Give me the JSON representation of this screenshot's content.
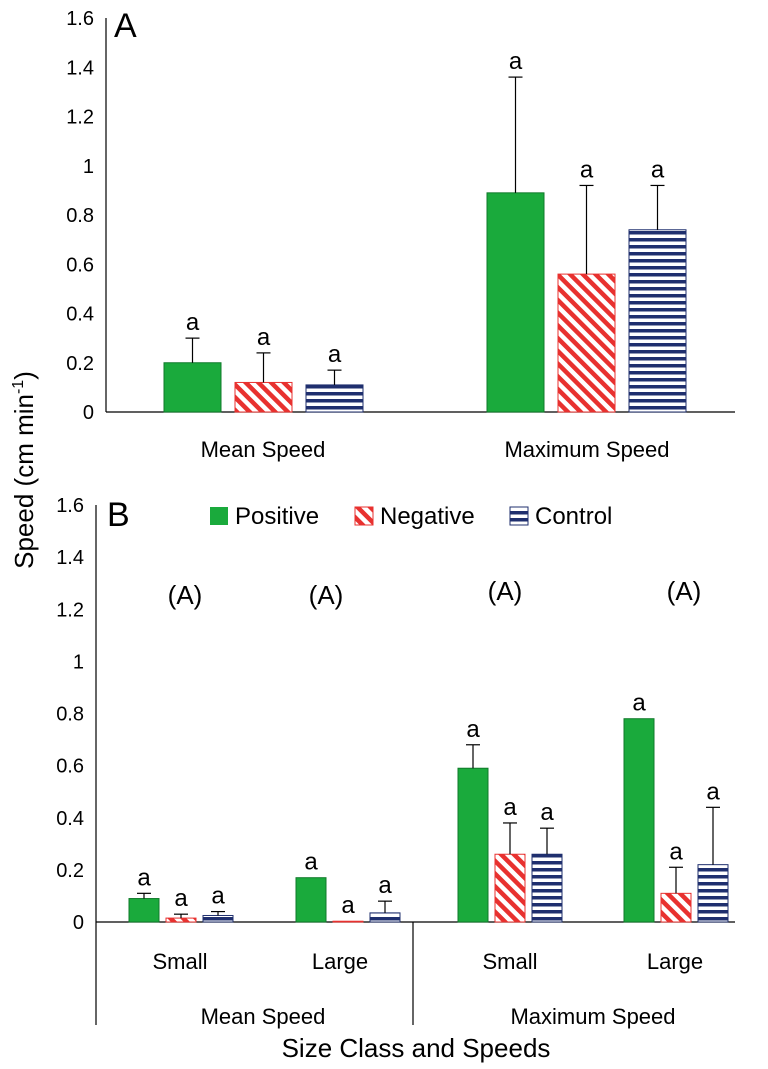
{
  "shared": {
    "ylabel": "Speed (cm min",
    "ylabel_sup": "-1",
    "ylabel_close": ")",
    "xlabel": "Size Class and Speeds",
    "yticks": [
      "0",
      "0.2",
      "0.4",
      "0.6",
      "0.8",
      "1",
      "1.2",
      "1.4",
      "1.6"
    ],
    "colors": {
      "Positive": "#1aaa3c",
      "Negative": "#e8312f",
      "Control": "#1f2f6e"
    },
    "patterns": {
      "Positive": "solid",
      "Negative": "diagonal-hatch",
      "Control": "horizontal-hatch"
    },
    "legend": [
      "Positive",
      "Negative",
      "Control"
    ],
    "legend_position": "top-center (panel B)"
  },
  "chart_data": [
    {
      "type": "bar",
      "panel_label": "A",
      "categories": [
        "Mean Speed",
        "Maximum Speed"
      ],
      "ylim": [
        0,
        1.6
      ],
      "series": [
        {
          "name": "Positive",
          "values": [
            0.2,
            0.89
          ],
          "errors": [
            0.1,
            0.47
          ]
        },
        {
          "name": "Negative",
          "values": [
            0.12,
            0.56
          ],
          "errors": [
            0.12,
            0.36
          ]
        },
        {
          "name": "Control",
          "values": [
            0.11,
            0.74
          ],
          "errors": [
            0.06,
            0.18
          ]
        }
      ],
      "significance": [
        [
          "a",
          "a",
          "a"
        ],
        [
          "a",
          "a",
          "a"
        ]
      ]
    },
    {
      "type": "bar",
      "panel_label": "B",
      "categories": [
        "Small",
        "Large",
        "Small",
        "Large"
      ],
      "group_labels": [
        "Mean Speed",
        "Maximum Speed"
      ],
      "group_annotations": [
        "(A)",
        "(A)",
        "(A)",
        "(A)"
      ],
      "ylim": [
        0,
        1.6
      ],
      "series": [
        {
          "name": "Positive",
          "values": [
            0.09,
            0.17,
            0.59,
            0.78
          ],
          "errors": [
            0.02,
            0.0,
            0.09,
            0.0
          ]
        },
        {
          "name": "Negative",
          "values": [
            0.015,
            0.003,
            0.26,
            0.11
          ],
          "errors": [
            0.015,
            0.0,
            0.12,
            0.1
          ]
        },
        {
          "name": "Control",
          "values": [
            0.025,
            0.035,
            0.26,
            0.22
          ],
          "errors": [
            0.015,
            0.045,
            0.1,
            0.22
          ]
        }
      ],
      "significance": [
        [
          "a",
          "a",
          "a"
        ],
        [
          "a",
          "a",
          "a"
        ],
        [
          "a",
          "a",
          "a"
        ],
        [
          "a",
          "a",
          "a"
        ]
      ]
    }
  ]
}
